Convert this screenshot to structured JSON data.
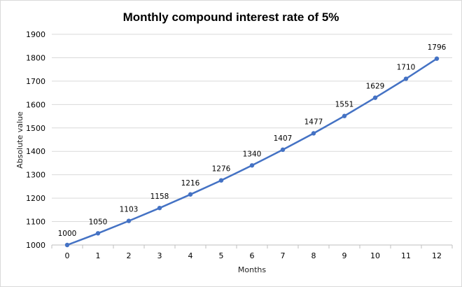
{
  "chart_data": {
    "type": "line",
    "title": "Monthly compound interest rate of 5%",
    "xlabel": "Months",
    "ylabel": "Absolute value",
    "x": [
      0,
      1,
      2,
      3,
      4,
      5,
      6,
      7,
      8,
      9,
      10,
      11,
      12
    ],
    "x_tick_labels": [
      "0",
      "1",
      "2",
      "3",
      "4",
      "5",
      "6",
      "7",
      "8",
      "9",
      "10",
      "11",
      "12"
    ],
    "series": [
      {
        "values": [
          1000,
          1050,
          1103,
          1158,
          1216,
          1276,
          1340,
          1407,
          1477,
          1551,
          1629,
          1710,
          1796
        ],
        "data_labels": [
          "1000",
          "1050",
          "1103",
          "1158",
          "1216",
          "1276",
          "1340",
          "1407",
          "1477",
          "1551",
          "1629",
          "1710",
          "1796"
        ],
        "color": "#4472c4"
      }
    ],
    "ylim": [
      1000,
      1900
    ],
    "y_ticks": [
      1000,
      1100,
      1200,
      1300,
      1400,
      1500,
      1600,
      1700,
      1800,
      1900
    ],
    "y_tick_labels": [
      "1000",
      "1100",
      "1200",
      "1300",
      "1400",
      "1500",
      "1600",
      "1700",
      "1800",
      "1900"
    ],
    "grid": true,
    "legend": "none"
  },
  "colors": {
    "line": "#4472c4",
    "gridline": "#d9d9d9",
    "axis": "#bfbfbf"
  }
}
